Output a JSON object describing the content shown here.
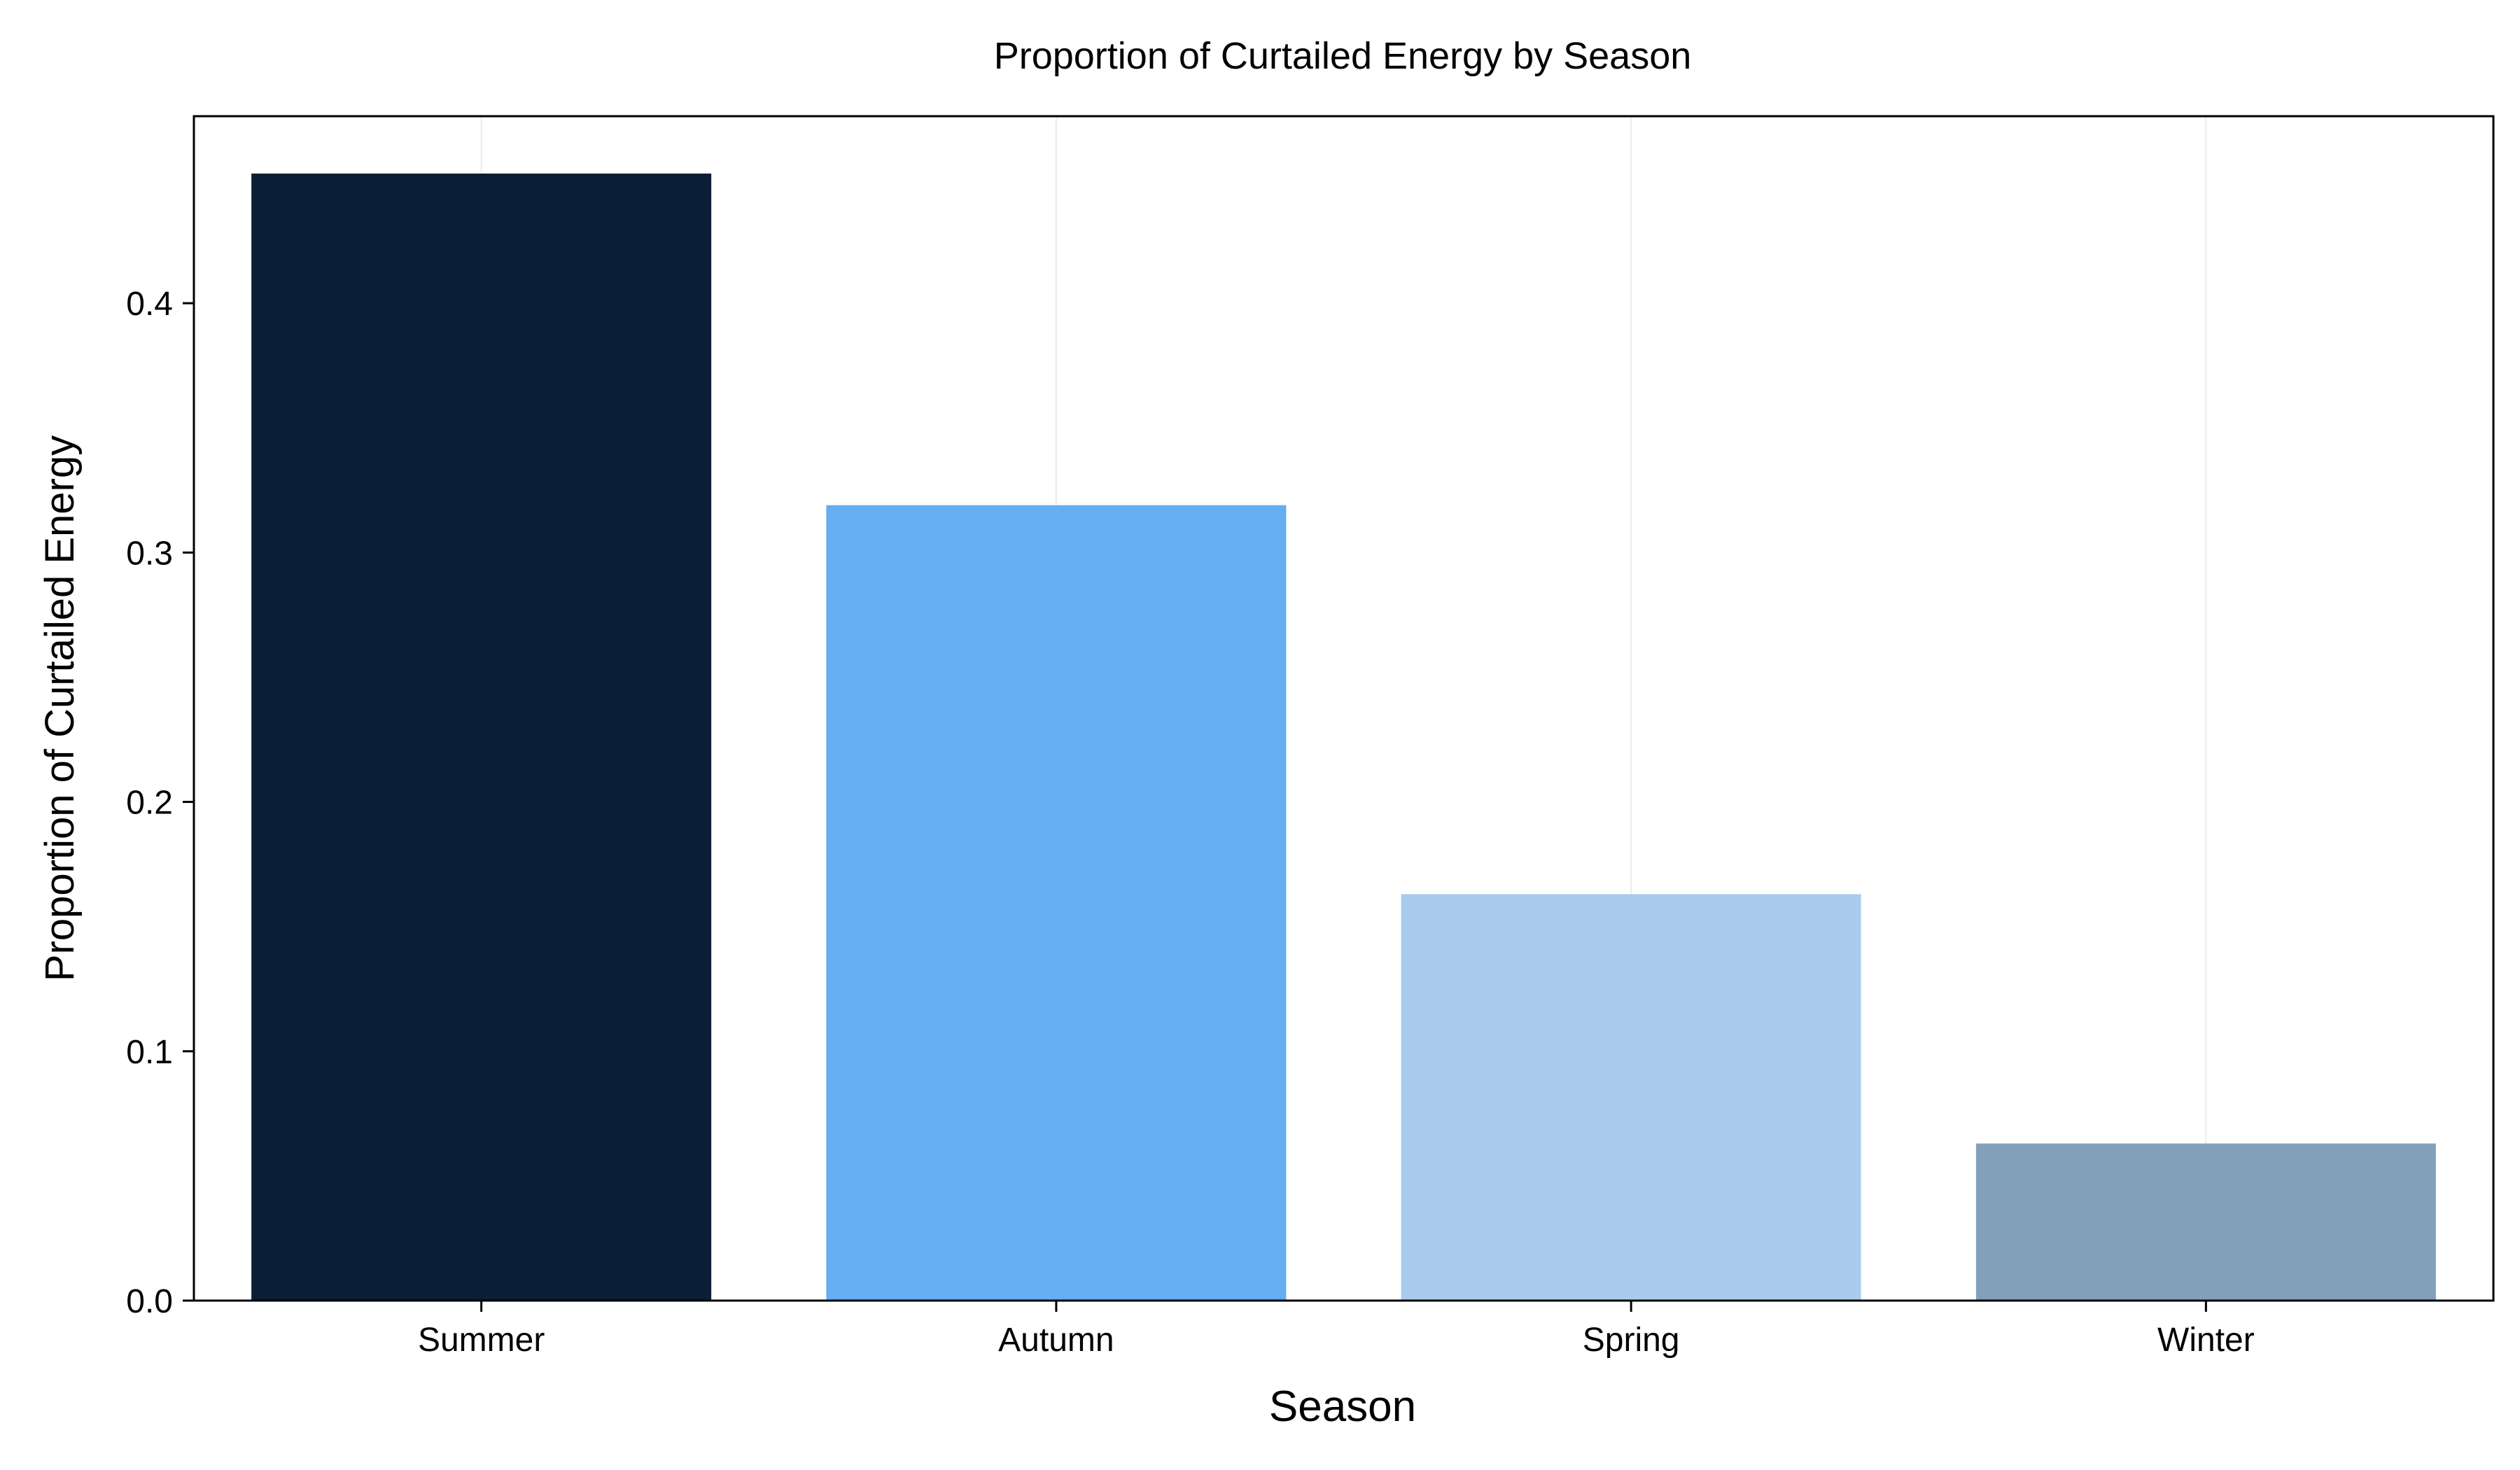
{
  "chart_data": {
    "type": "bar",
    "title": "Proportion of Curtailed Energy by Season",
    "xlabel": "Season",
    "ylabel": "Proportion of Curtailed Energy",
    "categories": [
      "Summer",
      "Autumn",
      "Spring",
      "Winter"
    ],
    "values": [
      0.452,
      0.319,
      0.163,
      0.063
    ],
    "colors": [
      "#0a1f35",
      "#64aef1",
      "#a9ccee",
      "#83a0ba"
    ],
    "ylim": [
      0,
      0.475
    ],
    "yticks": [
      0.0,
      0.1,
      0.2,
      0.3,
      0.4
    ],
    "ytick_labels": [
      "0.0",
      "0.1",
      "0.2",
      "0.3",
      "0.4"
    ],
    "grid": "vertical faint",
    "legend": "none"
  }
}
